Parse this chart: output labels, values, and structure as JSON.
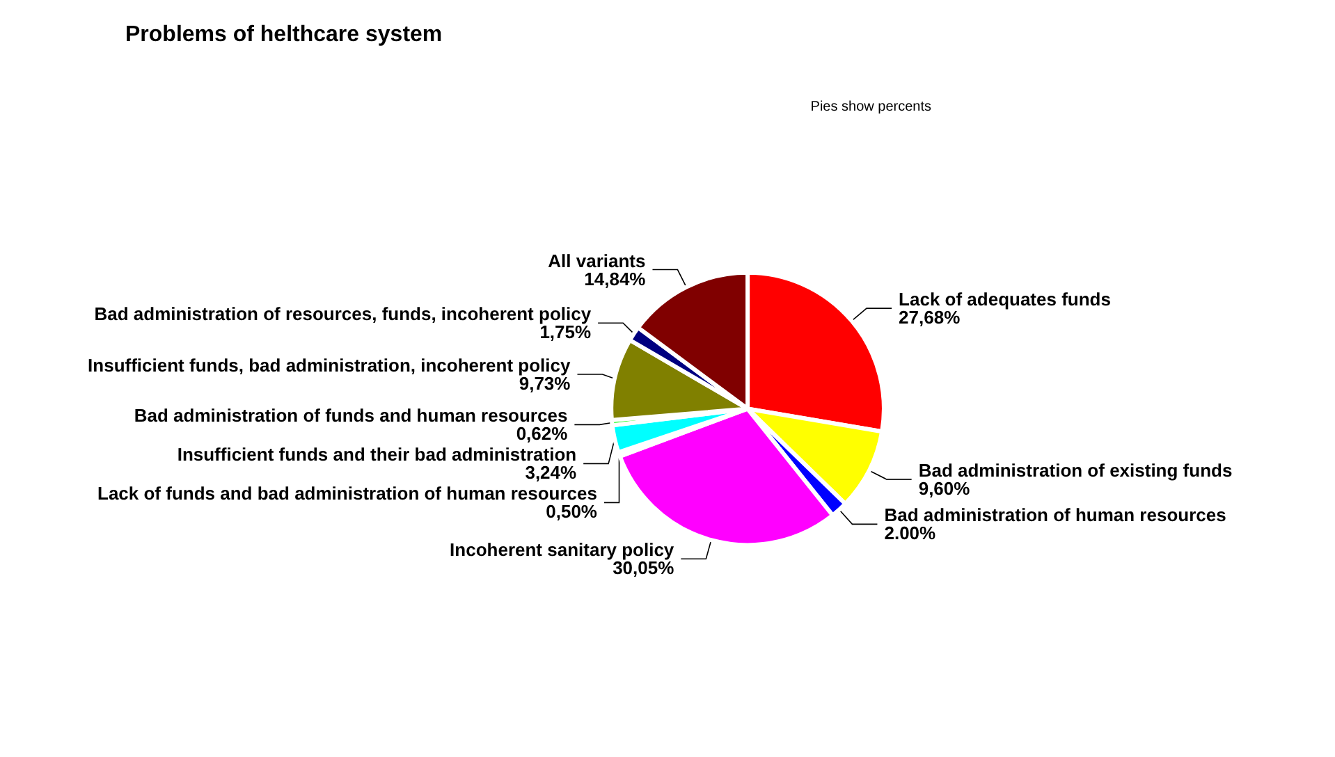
{
  "chart_data": {
    "type": "pie",
    "title": "Problems of helthcare system",
    "annotations": [
      "Pies show percents"
    ],
    "categories": [
      "Lack of adequates funds",
      "Bad administration of existing funds",
      "Bad administration of human resources",
      "Incoherent sanitary policy",
      "Lack of funds and bad administration of human resources",
      "Insufficient funds and their bad administration",
      "Bad administration of funds and human resources",
      "Insufficient funds, bad administration, incoherent policy",
      "Bad administration of resources, funds, incoherent policy",
      "All variants"
    ],
    "values": [
      27.68,
      9.6,
      2.0,
      30.05,
      0.5,
      3.24,
      0.62,
      9.73,
      1.75,
      14.84
    ],
    "value_labels": [
      "27,68%",
      "9,60%",
      "2.00%",
      "30,05%",
      "0,50%",
      "3,24%",
      "0,62%",
      "9,73%",
      "1,75%",
      "14,84%"
    ],
    "colors": [
      "#ff0000",
      "#ffff00",
      "#0000ff",
      "#ff00ff",
      "#008000",
      "#00ffff",
      "#00ff00",
      "#808000",
      "#000080",
      "#800000"
    ],
    "legend": false
  }
}
